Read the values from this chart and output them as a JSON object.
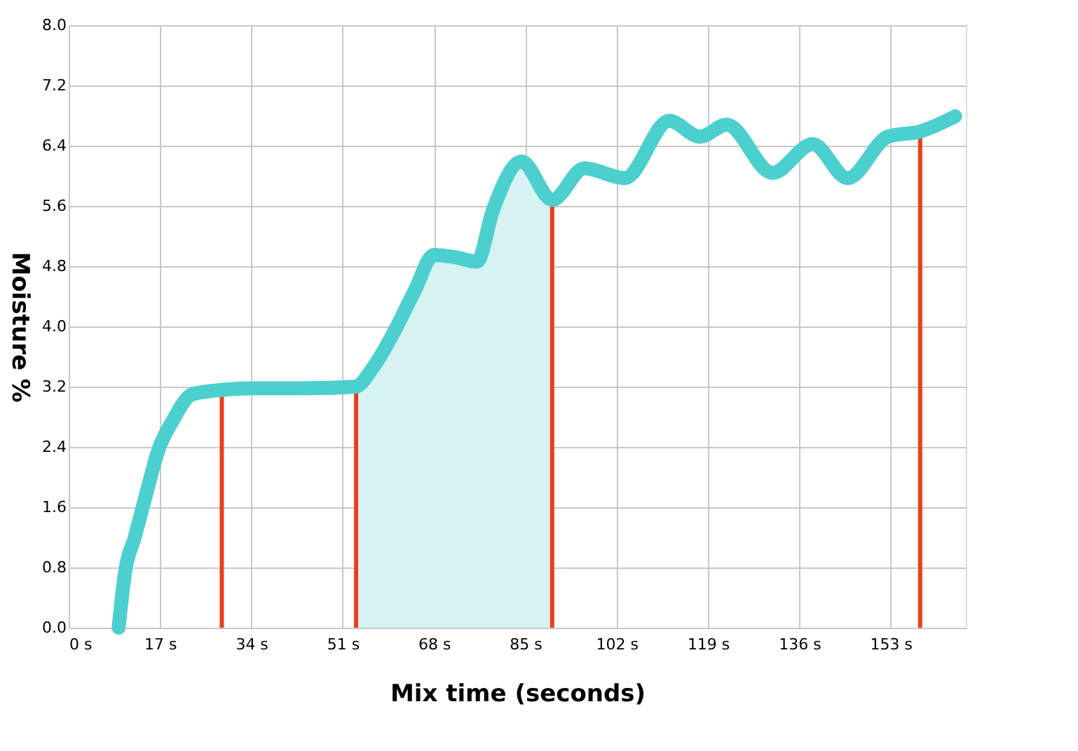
{
  "chart_data": {
    "type": "line",
    "xlabel": "Mix time (seconds)",
    "ylabel": "Moisture %",
    "x": [
      9.3,
      10.5,
      12.3,
      14.3,
      16.8,
      19.3,
      23,
      27.5,
      34.3,
      44.3,
      53.3,
      56.8,
      60.5,
      64.3,
      68,
      72,
      76,
      79,
      84.3,
      90,
      96,
      103.5,
      111.8,
      117.5,
      122.5,
      131,
      138.5,
      145,
      152.5,
      158.5,
      165
    ],
    "series": [
      {
        "type": "area",
        "color": "#d6f2f2",
        "x": [
          53.5,
          56.8,
          60.5,
          64.3,
          68,
          72,
          76,
          79,
          84.3,
          90
        ],
        "values": [
          3.2,
          3.47,
          3.92,
          4.46,
          4.95,
          4.92,
          4.86,
          5.55,
          6.19,
          5.68
        ]
      },
      {
        "color": "#4ccfcf",
        "values": [
          0.0,
          0.74,
          1.2,
          1.74,
          2.38,
          2.74,
          3.1,
          3.15,
          3.18,
          3.18,
          3.2,
          3.47,
          3.92,
          4.46,
          4.95,
          4.92,
          4.86,
          5.55,
          6.19,
          5.68,
          6.1,
          5.97,
          6.73,
          6.52,
          6.68,
          6.04,
          6.42,
          5.97,
          6.52,
          6.59,
          6.79
        ]
      }
    ],
    "xlim": [
      0,
      167
    ],
    "ylim": [
      0,
      8
    ],
    "xticks": [
      {
        "value": 0,
        "label": "0 s"
      },
      {
        "value": 17,
        "label": "17 s"
      },
      {
        "value": 34,
        "label": "34 s"
      },
      {
        "value": 51,
        "label": "51 s"
      },
      {
        "value": 68,
        "label": "68 s"
      },
      {
        "value": 85,
        "label": "85 s"
      },
      {
        "value": 102,
        "label": "102 s"
      },
      {
        "value": 119,
        "label": "119 s"
      },
      {
        "value": 136,
        "label": "136 s"
      },
      {
        "value": 153,
        "label": "153 s"
      }
    ],
    "yticks": [
      {
        "value": 0,
        "label": "0.0"
      },
      {
        "value": 0.8,
        "label": "0.8"
      },
      {
        "value": 1.6,
        "label": "1.6"
      },
      {
        "value": 2.4,
        "label": "2.4"
      },
      {
        "value": 3.2,
        "label": "3.2"
      },
      {
        "value": 4,
        "label": "4.0"
      },
      {
        "value": 4.8,
        "label": "4.8"
      },
      {
        "value": 5.6,
        "label": "5.6"
      },
      {
        "value": 6.4,
        "label": "6.4"
      },
      {
        "value": 7.2,
        "label": "7.2"
      },
      {
        "value": 8,
        "label": "8.0"
      }
    ],
    "ref_lines": [
      {
        "axis": "x",
        "value": 28.5,
        "color": "#e8401c"
      },
      {
        "axis": "x",
        "value": 53.5,
        "color": "#e8401c"
      },
      {
        "axis": "x",
        "value": 90,
        "color": "#e8401c"
      },
      {
        "axis": "x",
        "value": 158.5,
        "color": "#e8401c"
      }
    ],
    "grid": true,
    "line_style": "solid"
  }
}
